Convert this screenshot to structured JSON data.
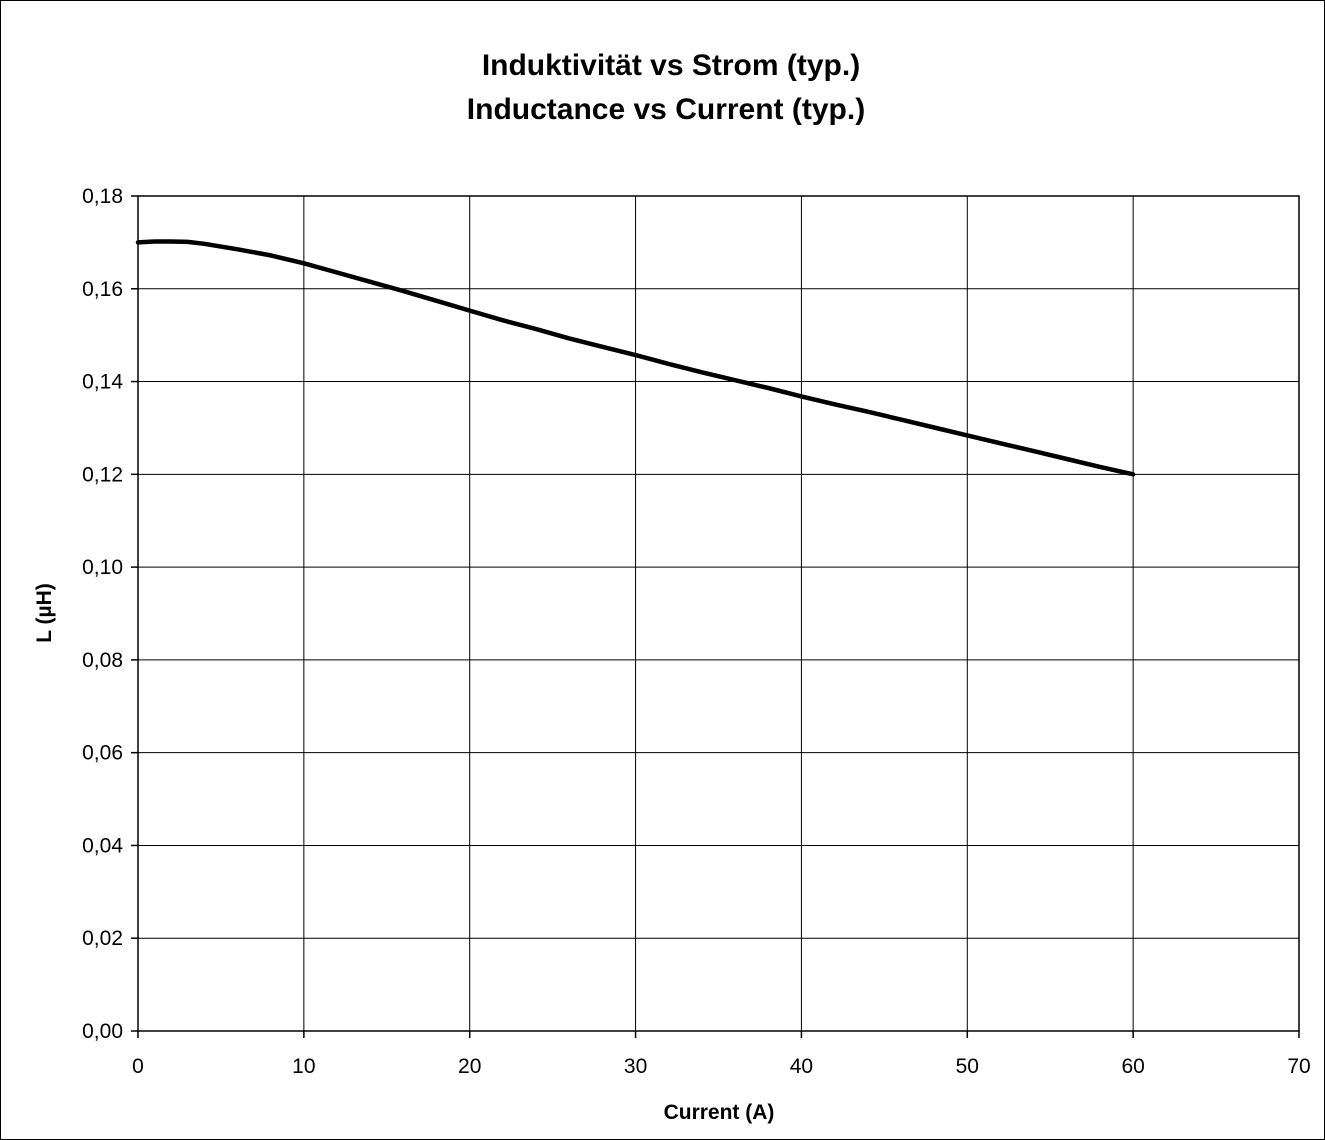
{
  "chart_data": {
    "type": "line",
    "title": "Induktivität vs Strom (typ.)",
    "subtitle": "Inductance vs Current (typ.)",
    "xlabel": "Current (A)",
    "ylabel": "L (µH)",
    "xlim": [
      0,
      70
    ],
    "ylim": [
      0,
      0.18
    ],
    "x_ticks": [
      "0",
      "10",
      "20",
      "30",
      "40",
      "50",
      "60",
      "70"
    ],
    "y_ticks": [
      "0,00",
      "0,02",
      "0,04",
      "0,06",
      "0,08",
      "0,10",
      "0,12",
      "0,14",
      "0,16",
      "0,18"
    ],
    "grid": true,
    "legend": "none",
    "series": [
      {
        "color": "#000000",
        "x": [
          0,
          1,
          2,
          3,
          4,
          6,
          8,
          10,
          12,
          14,
          16,
          18,
          20,
          22,
          24,
          26,
          28,
          30,
          32,
          34,
          36,
          38,
          40,
          42,
          44,
          46,
          48,
          50,
          52,
          54,
          56,
          58,
          60
        ],
        "y": [
          0.17,
          0.1702,
          0.1702,
          0.1701,
          0.1697,
          0.1685,
          0.1672,
          0.1655,
          0.1635,
          0.1615,
          0.1595,
          0.1574,
          0.1553,
          0.1532,
          0.1513,
          0.1493,
          0.1475,
          0.1457,
          0.1438,
          0.142,
          0.1403,
          0.1386,
          0.1368,
          0.1351,
          0.1335,
          0.1318,
          0.1301,
          0.1284,
          0.1267,
          0.125,
          0.1233,
          0.1216,
          0.12
        ]
      }
    ]
  }
}
